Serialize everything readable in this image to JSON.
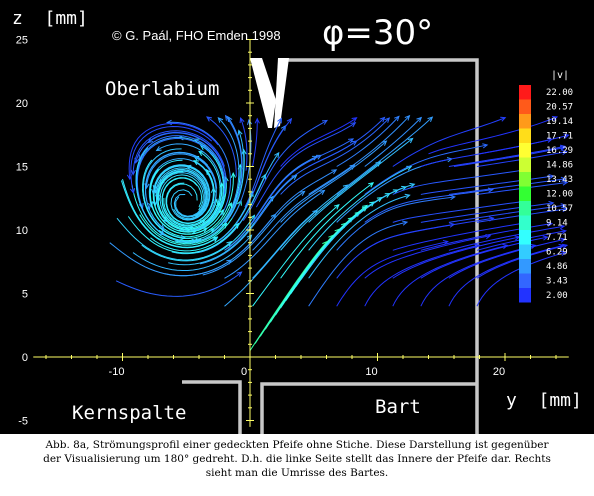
{
  "colors": {
    "background": "#000000",
    "axis": "#ffff66",
    "outline": "#c8c8c8",
    "text": "#ffffff"
  },
  "header": {
    "copyright": "© G. Paál, FHO Emden 1998",
    "angle": "φ=30°"
  },
  "labels": {
    "oberlabium": "Oberlabium",
    "kernspalte": "Kernspalte",
    "bart": "Bart"
  },
  "chart_data": {
    "type": "vector-field",
    "xlabel": "y  [mm]",
    "ylabel": "z  [mm]",
    "xlim": [
      -17,
      25
    ],
    "ylim": [
      -5.5,
      25
    ],
    "xticks": [
      -10,
      0,
      10,
      20
    ],
    "yticks": [
      -5,
      0,
      5,
      10,
      15,
      20,
      25
    ],
    "xtick_labels": [
      "-10",
      "0",
      "10",
      "20"
    ],
    "ytick_labels": [
      "-5",
      "0",
      "5",
      "10",
      "15",
      "20",
      "25"
    ],
    "vortex_center": [
      -5,
      11.8
    ],
    "jet_start": [
      0,
      0.5
    ],
    "colorbar": {
      "title": "|v|",
      "values": [
        "22.00",
        "20.57",
        "19.14",
        "17.71",
        "16.29",
        "14.86",
        "13.43",
        "12.00",
        "10.57",
        "9.14",
        "7.71",
        "6.29",
        "4.86",
        "3.43",
        "2.00"
      ],
      "colors": [
        "#ff1a1a",
        "#ff5a1a",
        "#ff9a1a",
        "#ffdd1a",
        "#ffff33",
        "#ccff33",
        "#80ff33",
        "#33ff33",
        "#33ff99",
        "#33ffcc",
        "#33ffff",
        "#33ccff",
        "#3399ff",
        "#3366ff",
        "#2233ff"
      ]
    }
  },
  "caption": {
    "line1": "Abb. 8a, Strömungsprofil einer gedeckten Pfeife ohne Stiche. Diese Darstellung ist gegenüber",
    "line2": "der Visualisierung um 180° gedreht. D.h. die linke Seite stellt das Innere der Pfeife dar. Rechts",
    "line3": "sieht man die Umrisse des Bartes."
  }
}
